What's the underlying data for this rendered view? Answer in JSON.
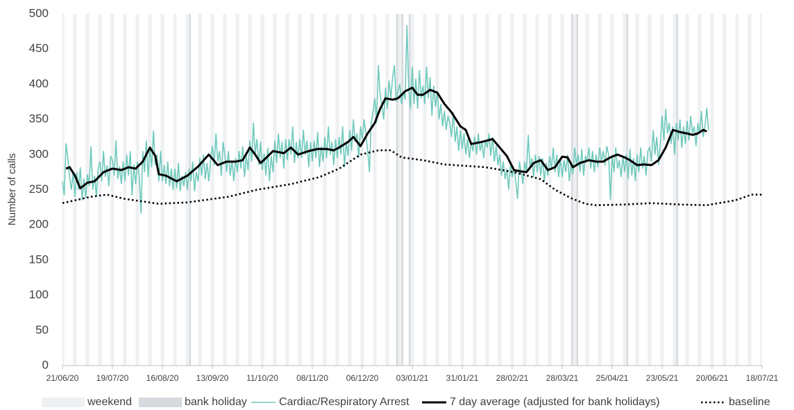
{
  "chart_data": {
    "type": "line",
    "y_label": "Number of calls",
    "ylim": [
      0,
      500
    ],
    "yticks": [
      0,
      50,
      100,
      150,
      200,
      250,
      300,
      350,
      400,
      450,
      500
    ],
    "xlim": [
      0,
      392
    ],
    "xticks": [
      {
        "value": 0,
        "label": "21/06/20"
      },
      {
        "value": 28,
        "label": "19/07/20"
      },
      {
        "value": 56,
        "label": "16/08/20"
      },
      {
        "value": 84,
        "label": "13/09/20"
      },
      {
        "value": 112,
        "label": "11/10/20"
      },
      {
        "value": 140,
        "label": "08/11/20"
      },
      {
        "value": 168,
        "label": "06/12/20"
      },
      {
        "value": 196,
        "label": "03/01/21"
      },
      {
        "value": 224,
        "label": "31/01/21"
      },
      {
        "value": 252,
        "label": "28/02/21"
      },
      {
        "value": 280,
        "label": "28/03/21"
      },
      {
        "value": 308,
        "label": "25/04/21"
      },
      {
        "value": 336,
        "label": "23/05/21"
      },
      {
        "value": 364,
        "label": "20/06/21"
      },
      {
        "value": 392,
        "label": "18/07/21"
      }
    ],
    "weekend": {
      "name": "weekend",
      "color": "#eef0f2"
    },
    "bank_holiday": {
      "name": "bank holiday",
      "color": "#d6dadf",
      "days": [
        71,
        187,
        190,
        194,
        285,
        288,
        316,
        344
      ]
    },
    "series": [
      {
        "name": "Cardiac/Respiratory Arrest",
        "color": "#6fc9bc",
        "style": "thin",
        "x": [
          0,
          1,
          2,
          3,
          4,
          5,
          6,
          7,
          8,
          9,
          10,
          11,
          12,
          13,
          14,
          15,
          16,
          17,
          18,
          19,
          20,
          21,
          22,
          23,
          24,
          25,
          26,
          27,
          28,
          29,
          30,
          31,
          32,
          33,
          34,
          35,
          36,
          37,
          38,
          39,
          40,
          41,
          42,
          43,
          44,
          45,
          46,
          47,
          48,
          49,
          50,
          51,
          52,
          53,
          54,
          55,
          56,
          57,
          58,
          59,
          60,
          61,
          62,
          63,
          64,
          65,
          66,
          67,
          68,
          69,
          70,
          71,
          72,
          73,
          74,
          75,
          76,
          77,
          78,
          79,
          80,
          81,
          82,
          83,
          84,
          85,
          86,
          87,
          88,
          89,
          90,
          91,
          92,
          93,
          94,
          95,
          96,
          97,
          98,
          99,
          100,
          101,
          102,
          103,
          104,
          105,
          106,
          107,
          108,
          109,
          110,
          111,
          112,
          113,
          114,
          115,
          116,
          117,
          118,
          119,
          120,
          121,
          122,
          123,
          124,
          125,
          126,
          127,
          128,
          129,
          130,
          131,
          132,
          133,
          134,
          135,
          136,
          137,
          138,
          139,
          140,
          141,
          142,
          143,
          144,
          145,
          146,
          147,
          148,
          149,
          150,
          151,
          152,
          153,
          154,
          155,
          156,
          157,
          158,
          159,
          160,
          161,
          162,
          163,
          164,
          165,
          166,
          167,
          168,
          169,
          170,
          171,
          172,
          173,
          174,
          175,
          176,
          177,
          178,
          179,
          180,
          181,
          182,
          183,
          184,
          185,
          186,
          187,
          188,
          189,
          190,
          191,
          192,
          193,
          194,
          195,
          196,
          197,
          198,
          199,
          200,
          201,
          202,
          203,
          204,
          205,
          206,
          207,
          208,
          209,
          210,
          211,
          212,
          213,
          214,
          215,
          216,
          217,
          218,
          219,
          220,
          221,
          222,
          223,
          224,
          225,
          226,
          227,
          228,
          229,
          230,
          231,
          232,
          233,
          234,
          235,
          236,
          237,
          238,
          239,
          240,
          241,
          242,
          243,
          244,
          245,
          246,
          247,
          248,
          249,
          250,
          251,
          252,
          253,
          254,
          255,
          256,
          257,
          258,
          259,
          260,
          261,
          262,
          263,
          264,
          265,
          266,
          267,
          268,
          269,
          270,
          271,
          272,
          273,
          274,
          275,
          276,
          277,
          278,
          279,
          280,
          281,
          282,
          283,
          284,
          285,
          286,
          287,
          288,
          289,
          290,
          291,
          292,
          293,
          294,
          295,
          296,
          297,
          298,
          299,
          300,
          301,
          302,
          303,
          304,
          305,
          306,
          307,
          308,
          309,
          310,
          311,
          312,
          313,
          314,
          315,
          316,
          317,
          318,
          319,
          320,
          321,
          322,
          323,
          324,
          325,
          326,
          327,
          328,
          329,
          330,
          331,
          332,
          333,
          334,
          335,
          336,
          337,
          338,
          339,
          340,
          341,
          342,
          343,
          344,
          345,
          346,
          347,
          348,
          349,
          350,
          351,
          352,
          353,
          354,
          355,
          356,
          357,
          358,
          359,
          360,
          361,
          362
        ],
        "values": [
          262,
          242,
          316,
          295,
          268,
          250,
          275,
          240,
          275,
          250,
          282,
          235,
          266,
          238,
          272,
          255,
          312,
          250,
          270,
          240,
          280,
          290,
          262,
          305,
          268,
          285,
          255,
          298,
          292,
          270,
          320,
          265,
          283,
          258,
          290,
          262,
          300,
          270,
          305,
          242,
          286,
          258,
          290,
          270,
          216,
          305,
          275,
          320,
          268,
          310,
          282,
          334,
          285,
          300,
          262,
          305,
          262,
          285,
          258,
          290,
          255,
          280,
          250,
          280,
          252,
          288,
          248,
          270,
          255,
          275,
          250,
          280,
          262,
          290,
          248,
          275,
          262,
          295,
          270,
          300,
          265,
          288,
          262,
          292,
          312,
          285,
          330,
          290,
          305,
          270,
          318,
          300,
          275,
          305,
          270,
          292,
          262,
          295,
          275,
          305,
          280,
          312,
          268,
          298,
          278,
          320,
          290,
          345,
          300,
          322,
          285,
          318,
          278,
          302,
          270,
          310,
          262,
          298,
          275,
          320,
          288,
          330,
          295,
          318,
          280,
          322,
          292,
          322,
          300,
          340,
          288,
          318,
          295,
          322,
          295,
          335,
          300,
          320,
          282,
          318,
          290,
          320,
          295,
          332,
          282,
          312,
          290,
          325,
          295,
          340,
          300,
          318,
          285,
          322,
          295,
          325,
          300,
          340,
          282,
          318,
          298,
          335,
          305,
          350,
          318,
          330,
          295,
          340,
          322,
          350,
          330,
          305,
          275,
          345,
          360,
          380,
          345,
          427,
          385,
          370,
          350,
          395,
          365,
          405,
          380,
          410,
          427,
          375,
          390,
          400,
          372,
          390,
          378,
          484,
          395,
          365,
          425,
          372,
          408,
          365,
          420,
          380,
          398,
          372,
          425,
          380,
          410,
          355,
          398,
          368,
          390,
          350,
          372,
          340,
          362,
          335,
          355,
          345,
          325,
          360,
          318,
          340,
          305,
          335,
          308,
          330,
          300,
          322,
          295,
          318,
          305,
          325,
          300,
          330,
          305,
          318,
          295,
          320,
          310,
          330,
          298,
          325,
          290,
          312,
          285,
          300,
          270,
          290,
          265,
          280,
          250,
          285,
          268,
          280,
          262,
          237,
          290,
          275,
          258,
          290,
          275,
          328,
          280,
          295,
          268,
          300,
          275,
          298,
          270,
          295,
          262,
          288,
          270,
          298,
          280,
          310,
          275,
          300,
          268,
          295,
          268,
          292,
          275,
          300,
          262,
          288,
          272,
          310,
          285,
          300,
          275,
          308,
          270,
          298,
          290,
          310,
          280,
          305,
          275,
          300,
          282,
          310,
          290,
          305,
          285,
          312,
          300,
          236,
          300,
          275,
          310,
          280,
          292,
          268,
          298,
          275,
          300,
          265,
          308,
          270,
          295,
          262,
          300,
          275,
          310,
          280,
          298,
          270,
          305,
          310,
          290,
          335,
          300,
          325,
          285,
          318,
          355,
          320,
          365,
          330,
          345,
          315,
          340,
          300,
          345,
          320,
          350,
          310,
          340,
          315,
          348,
          320,
          355,
          330,
          340,
          312,
          345,
          330,
          362,
          325,
          340,
          366,
          335
        ]
      },
      {
        "name": "7 day average (adjusted for bank holidays)",
        "color": "#000000",
        "style": "thick",
        "x": [
          2,
          4,
          7,
          10,
          14,
          18,
          23,
          28,
          33,
          37,
          41,
          45,
          49,
          52,
          54,
          58,
          64,
          70,
          76,
          82,
          87,
          92,
          97,
          101,
          105,
          108,
          111,
          114,
          118,
          124,
          128,
          132,
          138,
          143,
          148,
          152,
          155,
          160,
          163,
          167,
          171,
          175,
          178,
          181,
          185,
          188,
          192,
          196,
          199,
          202,
          206,
          210,
          214,
          218,
          223,
          226,
          229,
          235,
          241,
          245,
          249,
          253,
          257,
          260,
          264,
          268,
          272,
          276,
          280,
          283,
          286,
          290,
          295,
          299,
          303,
          307,
          311,
          315,
          318,
          322,
          326,
          330,
          334,
          338,
          342,
          346,
          350,
          353,
          356,
          359,
          361
        ],
        "values": [
          280,
          282,
          270,
          252,
          260,
          262,
          275,
          280,
          278,
          282,
          280,
          290,
          310,
          298,
          272,
          270,
          262,
          270,
          283,
          300,
          285,
          290,
          290,
          292,
          310,
          300,
          288,
          295,
          305,
          302,
          310,
          300,
          305,
          308,
          308,
          306,
          310,
          318,
          325,
          312,
          330,
          345,
          365,
          380,
          378,
          380,
          390,
          395,
          385,
          385,
          392,
          388,
          372,
          360,
          340,
          335,
          315,
          318,
          322,
          310,
          298,
          278,
          276,
          275,
          288,
          292,
          278,
          282,
          297,
          296,
          282,
          288,
          292,
          290,
          290,
          296,
          300,
          296,
          292,
          285,
          286,
          285,
          292,
          310,
          335,
          332,
          330,
          328,
          330,
          335,
          333
        ]
      },
      {
        "name": "baseline",
        "color": "#000000",
        "style": "dotted",
        "x": [
          0,
          16,
          25,
          35,
          54,
          70,
          93,
          109,
          128,
          144,
          155,
          167,
          177,
          184,
          190,
          202,
          214,
          237,
          253,
          268,
          276,
          285,
          293,
          299,
          315,
          330,
          346,
          361,
          377,
          386,
          392
        ],
        "values": [
          231,
          240,
          243,
          237,
          230,
          232,
          240,
          250,
          258,
          268,
          280,
          300,
          306,
          306,
          296,
          292,
          286,
          282,
          275,
          265,
          250,
          238,
          230,
          228,
          229,
          231,
          229,
          228,
          235,
          243,
          243
        ]
      }
    ]
  }
}
